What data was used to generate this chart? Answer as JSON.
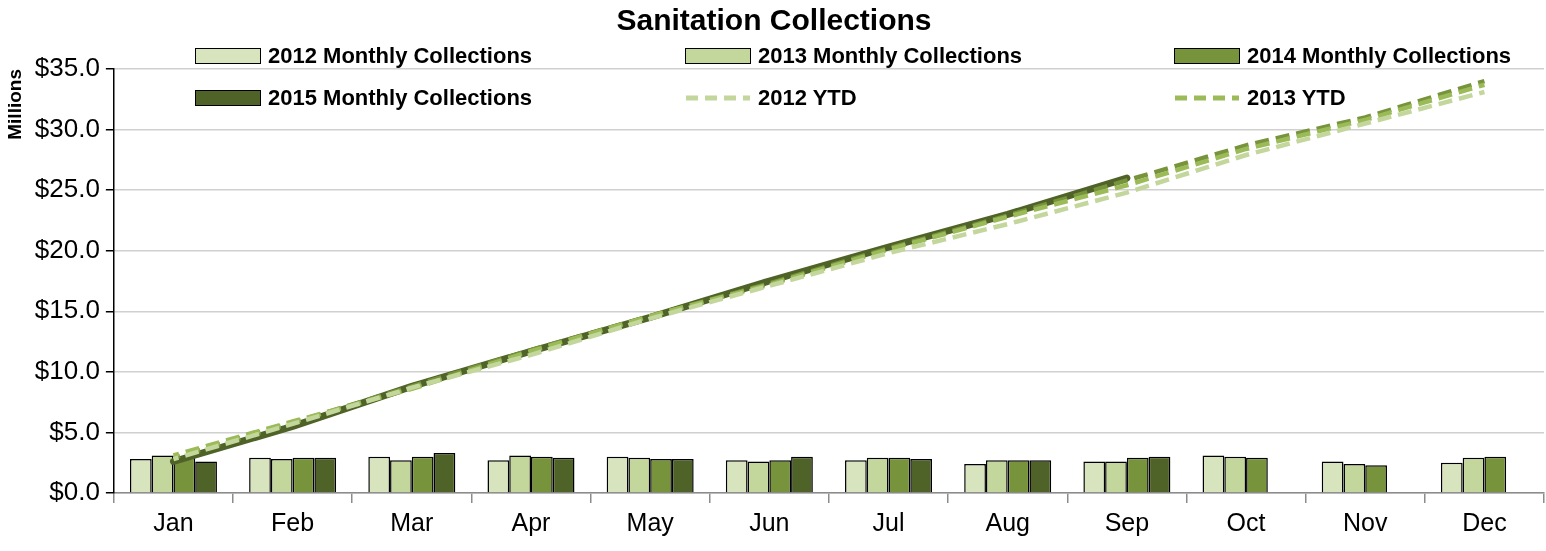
{
  "chart_data": {
    "type": "bar",
    "title": "Sanitation Collections",
    "ylabel": "Millions",
    "categories": [
      "Jan",
      "Feb",
      "Mar",
      "Apr",
      "May",
      "Jun",
      "Jul",
      "Aug",
      "Sep",
      "Oct",
      "Nov",
      "Dec"
    ],
    "series": [
      {
        "name": "2012 Monthly Collections",
        "color": "#d7e4bd",
        "values": [
          2.8,
          2.9,
          3.0,
          2.7,
          3.0,
          2.7,
          2.7,
          2.4,
          2.6,
          3.1,
          2.6,
          2.5
        ]
      },
      {
        "name": "2013 Monthly Collections",
        "color": "#c3d69b",
        "values": [
          3.1,
          2.8,
          2.7,
          3.1,
          2.9,
          2.6,
          2.9,
          2.7,
          2.6,
          3.0,
          2.4,
          2.9
        ]
      },
      {
        "name": "2014 Monthly Collections",
        "color": "#77933c",
        "values": [
          2.9,
          2.9,
          3.0,
          3.0,
          2.8,
          2.7,
          2.9,
          2.7,
          2.9,
          2.9,
          2.3,
          3.0
        ]
      },
      {
        "name": "2015 Monthly Collections",
        "color": "#4f6228",
        "values": [
          2.6,
          2.9,
          3.3,
          2.9,
          2.8,
          3.0,
          2.8,
          2.7,
          3.0,
          null,
          null,
          null
        ]
      },
      {
        "name": "2012 YTD",
        "type": "line",
        "color": "#c3d69b",
        "line_style": "dashed",
        "values": [
          2.8,
          5.7,
          8.7,
          11.4,
          14.4,
          17.1,
          19.8,
          22.2,
          24.8,
          27.9,
          30.5,
          33.1
        ]
      },
      {
        "name": "2013 YTD",
        "type": "line",
        "color": "#9bbb59",
        "line_style": "dashed",
        "values": [
          3.1,
          5.9,
          8.6,
          11.7,
          14.6,
          17.2,
          20.1,
          22.8,
          25.4,
          28.4,
          30.8,
          33.7
        ]
      },
      {
        "type": "line",
        "color": "#77933c",
        "line_style": "dashed",
        "values": [
          2.9,
          5.8,
          8.8,
          11.8,
          14.6,
          17.3,
          20.2,
          22.9,
          25.8,
          28.7,
          31.0,
          34.0
        ]
      },
      {
        "type": "line",
        "color": "#4f6228",
        "line_style": "solid",
        "values": [
          2.6,
          5.5,
          8.8,
          11.7,
          14.5,
          17.5,
          20.3,
          23.0,
          26.0,
          null,
          null,
          null
        ]
      }
    ],
    "ylim": [
      0,
      35
    ],
    "yticks": [
      {
        "value": 0,
        "label": "$0.0"
      },
      {
        "value": 5,
        "label": "$5.0"
      },
      {
        "value": 10,
        "label": "$10.0"
      },
      {
        "value": 15,
        "label": "$15.0"
      },
      {
        "value": 20,
        "label": "$20.0"
      },
      {
        "value": 25,
        "label": "$25.0"
      },
      {
        "value": 30,
        "label": "$30.0"
      },
      {
        "value": 35,
        "label": "$35.0"
      }
    ],
    "grid": "y",
    "legend": "top"
  }
}
